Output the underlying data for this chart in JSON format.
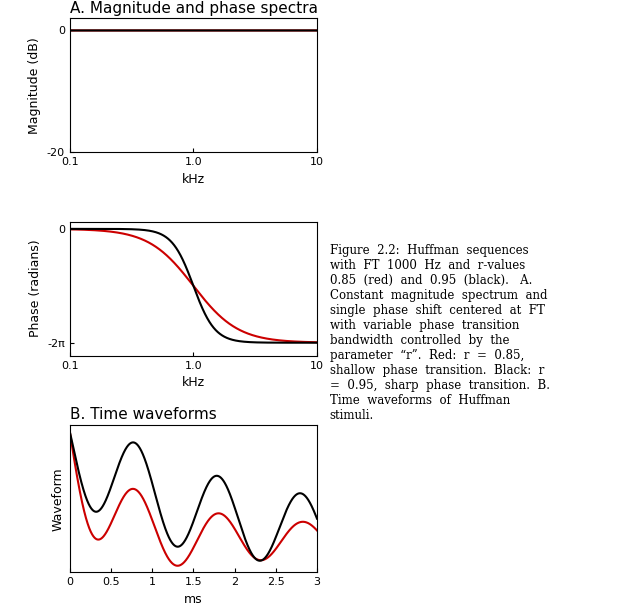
{
  "title_A": "A. Magnitude and phase spectra",
  "title_B": "B. Time waveforms",
  "mag_ylim": [
    -20,
    2
  ],
  "mag_yticks": [
    -20,
    0
  ],
  "phase_ylim": [
    -7.0,
    0.4
  ],
  "phase_ytick_val": -6.283185307179586,
  "phase_ytick_label": "-2π",
  "freq_xlim_log": [
    0.1,
    10
  ],
  "freq_xticks": [
    0.1,
    1.0,
    10
  ],
  "freq_xtick_labels": [
    "0.1",
    "1.0",
    "10"
  ],
  "time_xlim": [
    0,
    3
  ],
  "time_xticks": [
    0,
    0.5,
    1,
    1.5,
    2,
    2.5,
    3
  ],
  "time_xtick_labels": [
    "0",
    "0.5",
    "1",
    "1.5",
    "2",
    "2.5",
    "3"
  ],
  "xlabel_freq": "kHz",
  "xlabel_time": "ms",
  "ylabel_mag": "Magnitude (dB)",
  "ylabel_phase": "Phase (radians)",
  "ylabel_time": "Waveform",
  "r_red": 0.85,
  "r_black": 0.95,
  "ft_hz": 1000,
  "color_red": "#cc0000",
  "color_black": "#000000",
  "line_width": 1.5,
  "bg_color": "#ffffff",
  "font_size_title": 11,
  "font_size_label": 9,
  "font_size_tick": 8,
  "phase_n_red": 1.2,
  "phase_n_black": 2.5
}
